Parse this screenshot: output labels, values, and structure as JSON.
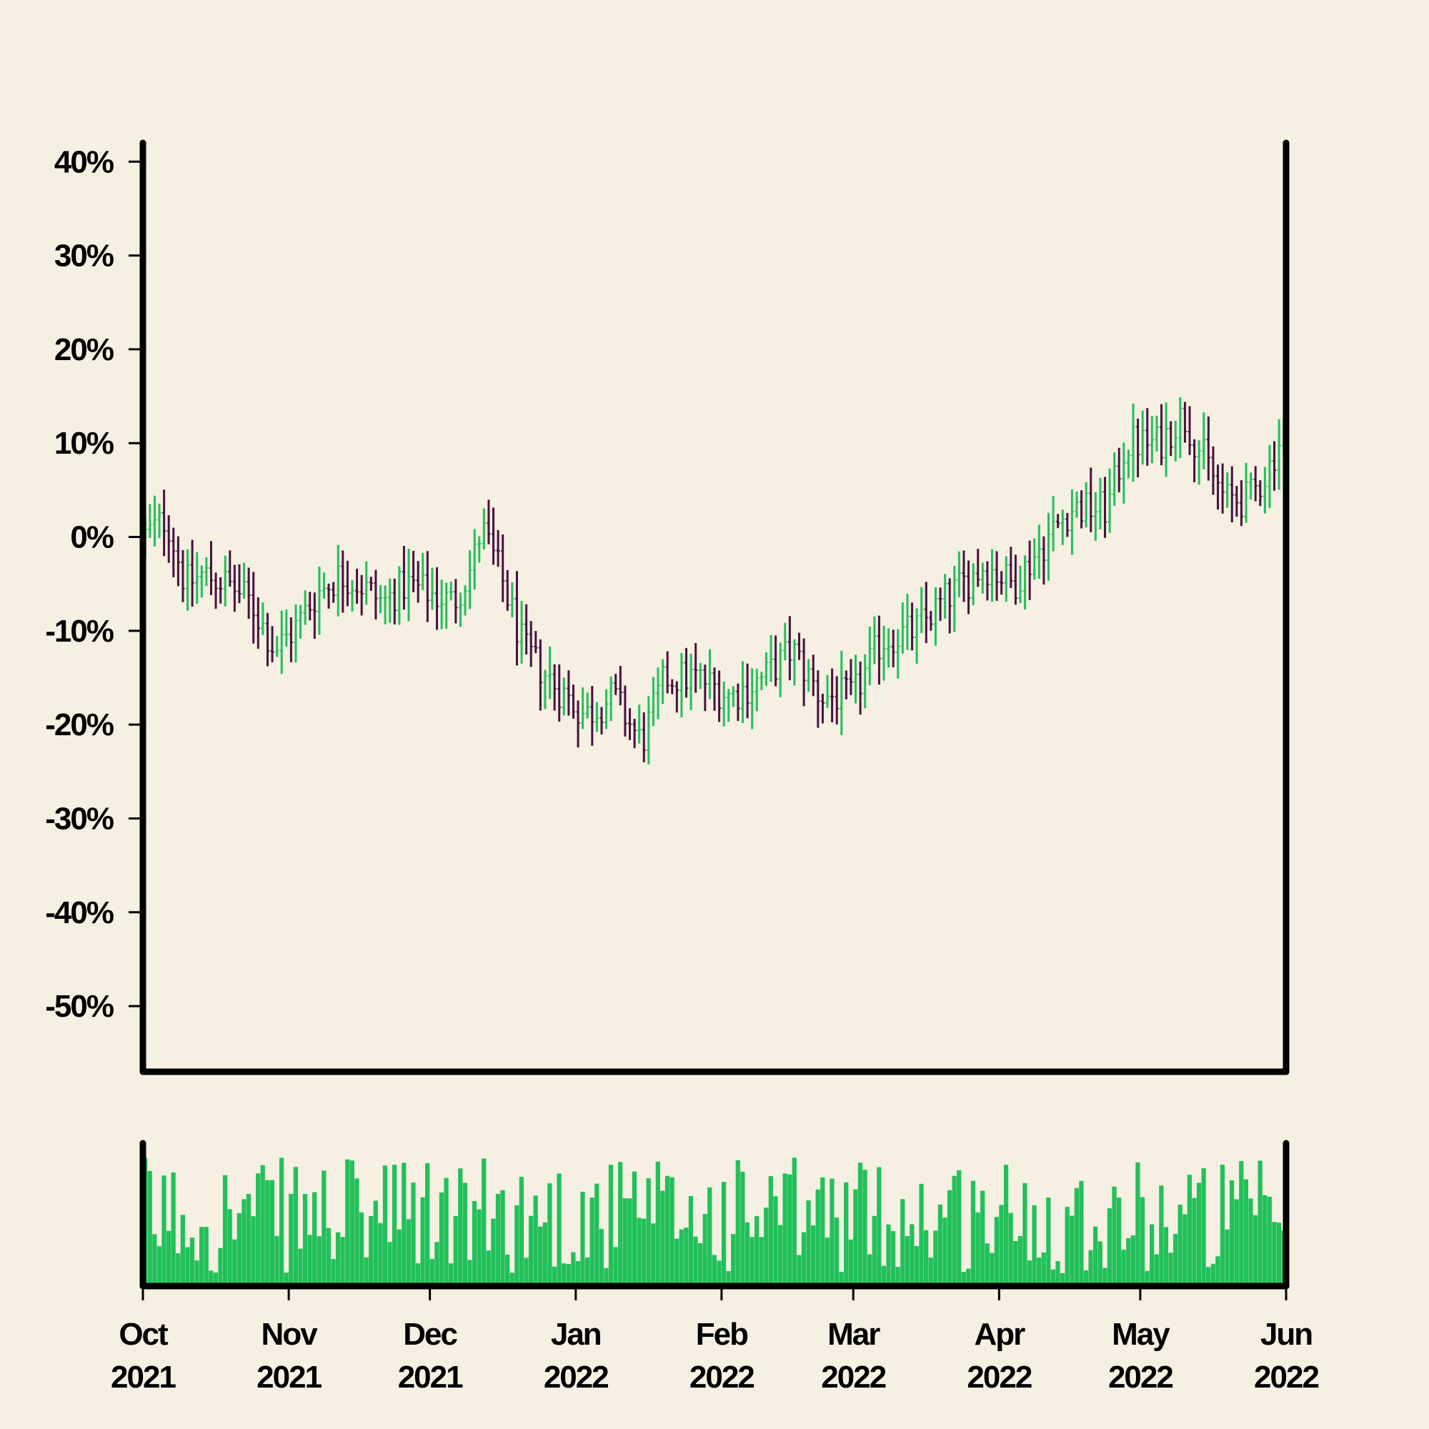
{
  "chart_data": {
    "type": "ohlc",
    "colors": {
      "background": "#f5f0e1",
      "up": "#22c05a",
      "down": "#4a1040",
      "volume": "#22c05a",
      "axis": "#000000"
    },
    "price_panel": {
      "ylim": [
        -57,
        42
      ],
      "y_ticks": [
        40,
        30,
        20,
        10,
        0,
        -10,
        -20,
        -30,
        -40,
        -50
      ],
      "y_tick_labels": [
        "40%",
        "30%",
        "20%",
        "10%",
        "0%",
        "-10%",
        "-20%",
        "-30%",
        "-40%",
        "-50%"
      ],
      "grid": false
    },
    "x_axis": {
      "range": [
        "2021-10-01",
        "2022-06-01"
      ],
      "ticks": [
        {
          "date": "2021-10-01",
          "month": "Oct",
          "year": "2021"
        },
        {
          "date": "2021-11-01",
          "month": "Nov",
          "year": "2021"
        },
        {
          "date": "2021-12-01",
          "month": "Dec",
          "year": "2021"
        },
        {
          "date": "2022-01-01",
          "month": "Jan",
          "year": "2022"
        },
        {
          "date": "2022-02-01",
          "month": "Feb",
          "year": "2022"
        },
        {
          "date": "2022-03-01",
          "month": "Mar",
          "year": "2022"
        },
        {
          "date": "2022-04-01",
          "month": "Apr",
          "year": "2022"
        },
        {
          "date": "2022-05-01",
          "month": "May",
          "year": "2022"
        },
        {
          "date": "2022-06-01",
          "month": "Jun",
          "year": "2022"
        }
      ]
    },
    "series_points": [
      {
        "date": "2021-10-01",
        "close": 0
      },
      {
        "date": "2021-10-06",
        "close": 2
      },
      {
        "date": "2021-10-10",
        "close": -5
      },
      {
        "date": "2021-10-14",
        "close": -4
      },
      {
        "date": "2021-10-19",
        "close": -5
      },
      {
        "date": "2021-10-24",
        "close": -7
      },
      {
        "date": "2021-10-29",
        "close": -12
      },
      {
        "date": "2021-11-02",
        "close": -10
      },
      {
        "date": "2021-11-07",
        "close": -6
      },
      {
        "date": "2021-11-12",
        "close": -4
      },
      {
        "date": "2021-11-16",
        "close": -5
      },
      {
        "date": "2021-11-21",
        "close": -7
      },
      {
        "date": "2021-11-26",
        "close": -5
      },
      {
        "date": "2021-12-01",
        "close": -6
      },
      {
        "date": "2021-12-06",
        "close": -7
      },
      {
        "date": "2021-12-10",
        "close": -3
      },
      {
        "date": "2021-12-12",
        "close": 1
      },
      {
        "date": "2021-12-16",
        "close": -4
      },
      {
        "date": "2021-12-21",
        "close": -12
      },
      {
        "date": "2021-12-28",
        "close": -16
      },
      {
        "date": "2022-01-03",
        "close": -19
      },
      {
        "date": "2022-01-09",
        "close": -17
      },
      {
        "date": "2022-01-15",
        "close": -22
      },
      {
        "date": "2022-01-20",
        "close": -15
      },
      {
        "date": "2022-01-27",
        "close": -15
      },
      {
        "date": "2022-02-03",
        "close": -17
      },
      {
        "date": "2022-02-10",
        "close": -15
      },
      {
        "date": "2022-02-16",
        "close": -12
      },
      {
        "date": "2022-02-22",
        "close": -17
      },
      {
        "date": "2022-03-01",
        "close": -17
      },
      {
        "date": "2022-03-07",
        "close": -11
      },
      {
        "date": "2022-03-14",
        "close": -10
      },
      {
        "date": "2022-03-22",
        "close": -6
      },
      {
        "date": "2022-03-29",
        "close": -3
      },
      {
        "date": "2022-04-04",
        "close": -5
      },
      {
        "date": "2022-04-10",
        "close": -1
      },
      {
        "date": "2022-04-16",
        "close": 3
      },
      {
        "date": "2022-04-24",
        "close": 3
      },
      {
        "date": "2022-04-28",
        "close": 10
      },
      {
        "date": "2022-05-05",
        "close": 10
      },
      {
        "date": "2022-05-10",
        "close": 13
      },
      {
        "date": "2022-05-15",
        "close": 8
      },
      {
        "date": "2022-05-19",
        "close": 4
      },
      {
        "date": "2022-05-24",
        "close": 4
      },
      {
        "date": "2022-05-28",
        "close": 7
      },
      {
        "date": "2022-06-01",
        "close": 12
      }
    ]
  }
}
